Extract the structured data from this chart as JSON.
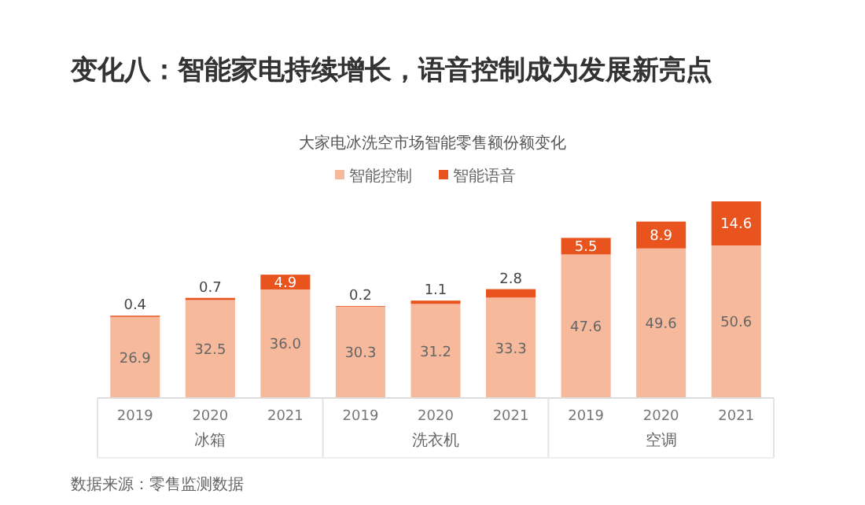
{
  "chart_data": {
    "type": "bar",
    "title": "变化八：智能家电持续增长，语音控制成为发展新亮点",
    "subtitle": "大家电冰洗空市场智能零售额份额变化",
    "categories": [
      "2019",
      "2020",
      "2021",
      "2019",
      "2020",
      "2021",
      "2019",
      "2020",
      "2021"
    ],
    "series": [
      {
        "name": "智能控制",
        "color": "#f6b99b",
        "values": [
          26.9,
          32.5,
          36.0,
          30.3,
          31.2,
          33.3,
          47.6,
          49.6,
          50.6
        ],
        "value_labels": [
          "26.9",
          "32.5",
          "36.0",
          "30.3",
          "31.2",
          "33.3",
          "47.6",
          "49.6",
          "50.6"
        ]
      },
      {
        "name": "智能语音",
        "color": "#e8531e",
        "values": [
          0.4,
          0.7,
          4.9,
          0.2,
          1.1,
          2.8,
          5.5,
          8.9,
          14.6
        ],
        "value_labels": [
          "0.4",
          "0.7",
          "4.9",
          "0.2",
          "1.1",
          "2.8",
          "5.5",
          "8.9",
          "14.6"
        ]
      }
    ],
    "stacked": true,
    "legend": "top",
    "annotations": [
      "冰箱",
      "洗衣机",
      "空调",
      "数据来源：零售监测数据"
    ]
  }
}
